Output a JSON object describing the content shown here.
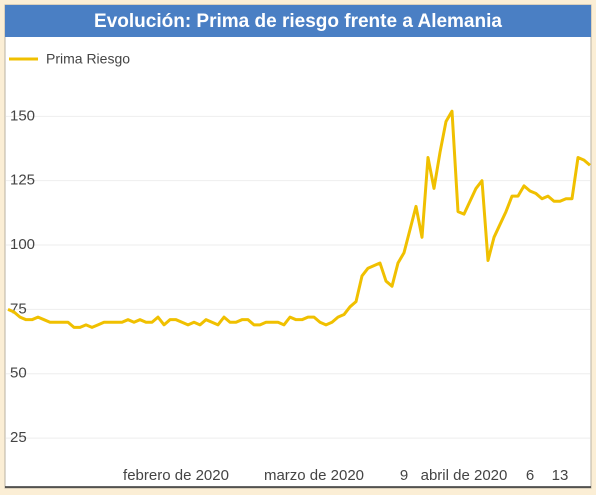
{
  "chart_data": {
    "type": "line",
    "title": "Evolución: Prima de riesgo frente a Alemania",
    "categories": [
      null,
      null,
      null,
      null,
      null,
      null,
      null,
      null,
      null,
      null,
      null,
      null,
      null,
      null,
      null,
      null,
      null,
      null,
      null,
      null,
      null,
      null,
      null,
      null,
      null,
      null,
      null,
      null,
      "febrero de 2020",
      null,
      null,
      null,
      null,
      null,
      null,
      null,
      null,
      null,
      null,
      null,
      null,
      null,
      null,
      null,
      null,
      null,
      null,
      null,
      null,
      null,
      null,
      "marzo de 2020",
      null,
      null,
      null,
      null,
      null,
      null,
      null,
      null,
      null,
      null,
      null,
      null,
      null,
      null,
      "9",
      null,
      null,
      null,
      null,
      null,
      null,
      null,
      null,
      null,
      "abril de 2020",
      null,
      null,
      null,
      null,
      null,
      null,
      null,
      null,
      null,
      null,
      "6",
      null,
      null,
      null,
      null,
      "13",
      null,
      null,
      null,
      null,
      null
    ],
    "series": [
      {
        "name": "Prima Riesgo",
        "color": "#f0c000",
        "values": [
          75,
          74,
          72,
          71,
          71,
          72,
          71,
          70,
          70,
          70,
          70,
          68,
          68,
          69,
          68,
          69,
          70,
          70,
          70,
          70,
          71,
          70,
          71,
          70,
          70,
          72,
          69,
          71,
          71,
          70,
          69,
          70,
          69,
          71,
          70,
          69,
          72,
          70,
          70,
          71,
          71,
          69,
          69,
          70,
          70,
          70,
          69,
          72,
          71,
          71,
          72,
          72,
          70,
          69,
          70,
          72,
          73,
          76,
          78,
          88,
          91,
          92,
          93,
          86,
          84,
          93,
          97,
          106,
          115,
          103,
          134,
          122,
          136,
          148,
          152,
          113,
          112,
          117,
          122,
          125,
          94,
          103,
          108,
          113,
          119,
          119,
          123,
          121,
          120,
          118,
          119,
          117,
          117,
          118,
          118,
          134,
          133,
          131
        ]
      }
    ],
    "ylim": [
      6,
      168
    ],
    "yticks": [
      25,
      50,
      75,
      100,
      125,
      150
    ],
    "grid": true,
    "legend": "top-left"
  }
}
